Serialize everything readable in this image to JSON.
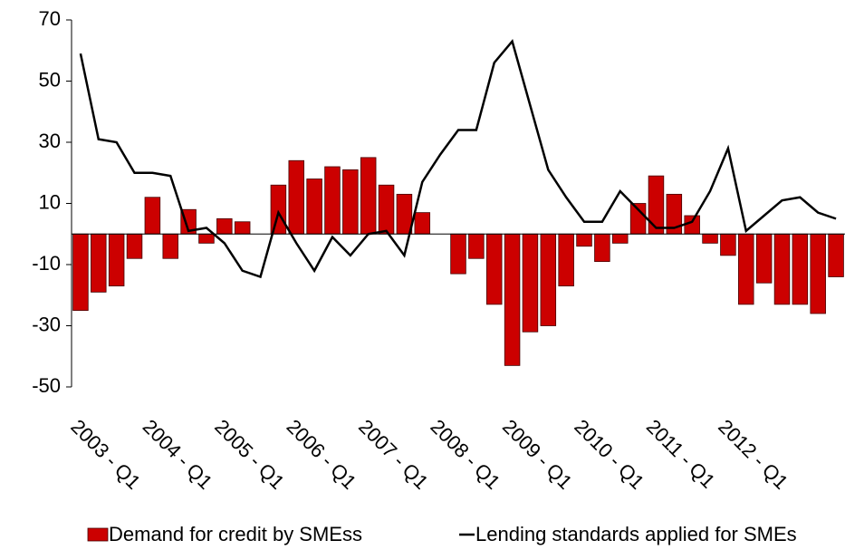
{
  "chart_data": {
    "type": "bar",
    "categories": [
      "2003 - Q1",
      null,
      null,
      null,
      "2004 - Q1",
      null,
      null,
      null,
      "2005 - Q1",
      null,
      null,
      null,
      "2006 - Q1",
      null,
      null,
      null,
      "2007 - Q1",
      null,
      null,
      null,
      "2008 - Q1",
      null,
      null,
      null,
      "2009 - Q1",
      null,
      null,
      null,
      "2010 - Q1",
      null,
      null,
      null,
      "2011 - Q1",
      null,
      null,
      null,
      "2012 - Q1",
      null,
      null,
      null,
      null,
      null,
      null
    ],
    "series": [
      {
        "name": "Demand for credit by SMEss",
        "type": "bar",
        "color": "#cc0000",
        "values": [
          -25,
          -19,
          -17,
          -8,
          12,
          -8,
          8,
          -3,
          5,
          4,
          0,
          16,
          24,
          18,
          22,
          21,
          25,
          16,
          13,
          7,
          0,
          -13,
          -8,
          -23,
          -43,
          -32,
          -30,
          -17,
          -4,
          -9,
          -3,
          10,
          19,
          13,
          6,
          -3,
          -7,
          -23,
          -16,
          -23,
          -23,
          -26,
          -14
        ]
      },
      {
        "name": "Lending standards applied for SMEs",
        "type": "line",
        "color": "#000000",
        "values": [
          59,
          31,
          30,
          20,
          20,
          19,
          1,
          2,
          -3,
          -12,
          -14,
          7,
          -3,
          -12,
          -1,
          -7,
          0,
          1,
          -7,
          17,
          26,
          34,
          34,
          56,
          63,
          42,
          21,
          12,
          4,
          4,
          14,
          8,
          2,
          2,
          4,
          14,
          28,
          1,
          6,
          11,
          12,
          7,
          5
        ]
      }
    ],
    "ylim": [
      -50,
      70
    ],
    "yticks": [
      -50,
      -30,
      -10,
      10,
      30,
      50,
      70
    ],
    "grid": false
  }
}
